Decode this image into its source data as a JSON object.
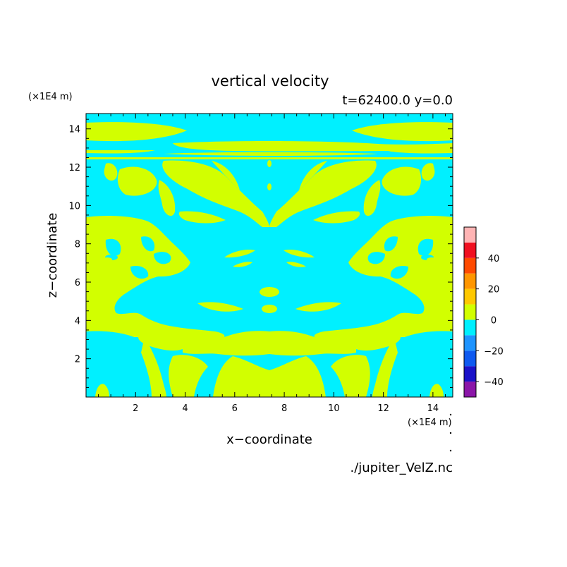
{
  "chart_data": {
    "type": "heatmap",
    "title": "vertical velocity",
    "subtitle": "t=62400.0 y=0.0",
    "xlabel": "x−coordinate",
    "ylabel": "z−coordinate",
    "x_unit": "(×1E4 m)",
    "z_unit": "(×1E4 m)",
    "xlim": [
      0,
      14.8
    ],
    "ylim": [
      0,
      14.8
    ],
    "x_ticks": [
      2,
      4,
      6,
      8,
      10,
      12,
      14
    ],
    "y_ticks": [
      2,
      4,
      6,
      8,
      10,
      12,
      14
    ],
    "colorbar": {
      "levels": [
        -50,
        -40,
        -30,
        -20,
        -10,
        0,
        10,
        20,
        30,
        40,
        50
      ],
      "colors": [
        "#8b16a8",
        "#1a12c8",
        "#0f5af0",
        "#1e94ff",
        "#00f0ff",
        "#d2ff00",
        "#ffc800",
        "#ff9600",
        "#ff4a00",
        "#f01020"
      ],
      "extra_color": "#ffb4b4",
      "tick_labels": [
        "40",
        "20",
        "0",
        "−20",
        "−40"
      ]
    },
    "regions": {
      "positive_color": "#d2ff00",
      "negative_color": "#00f0ff"
    },
    "source": "./jupiter_VelZ.nc"
  }
}
